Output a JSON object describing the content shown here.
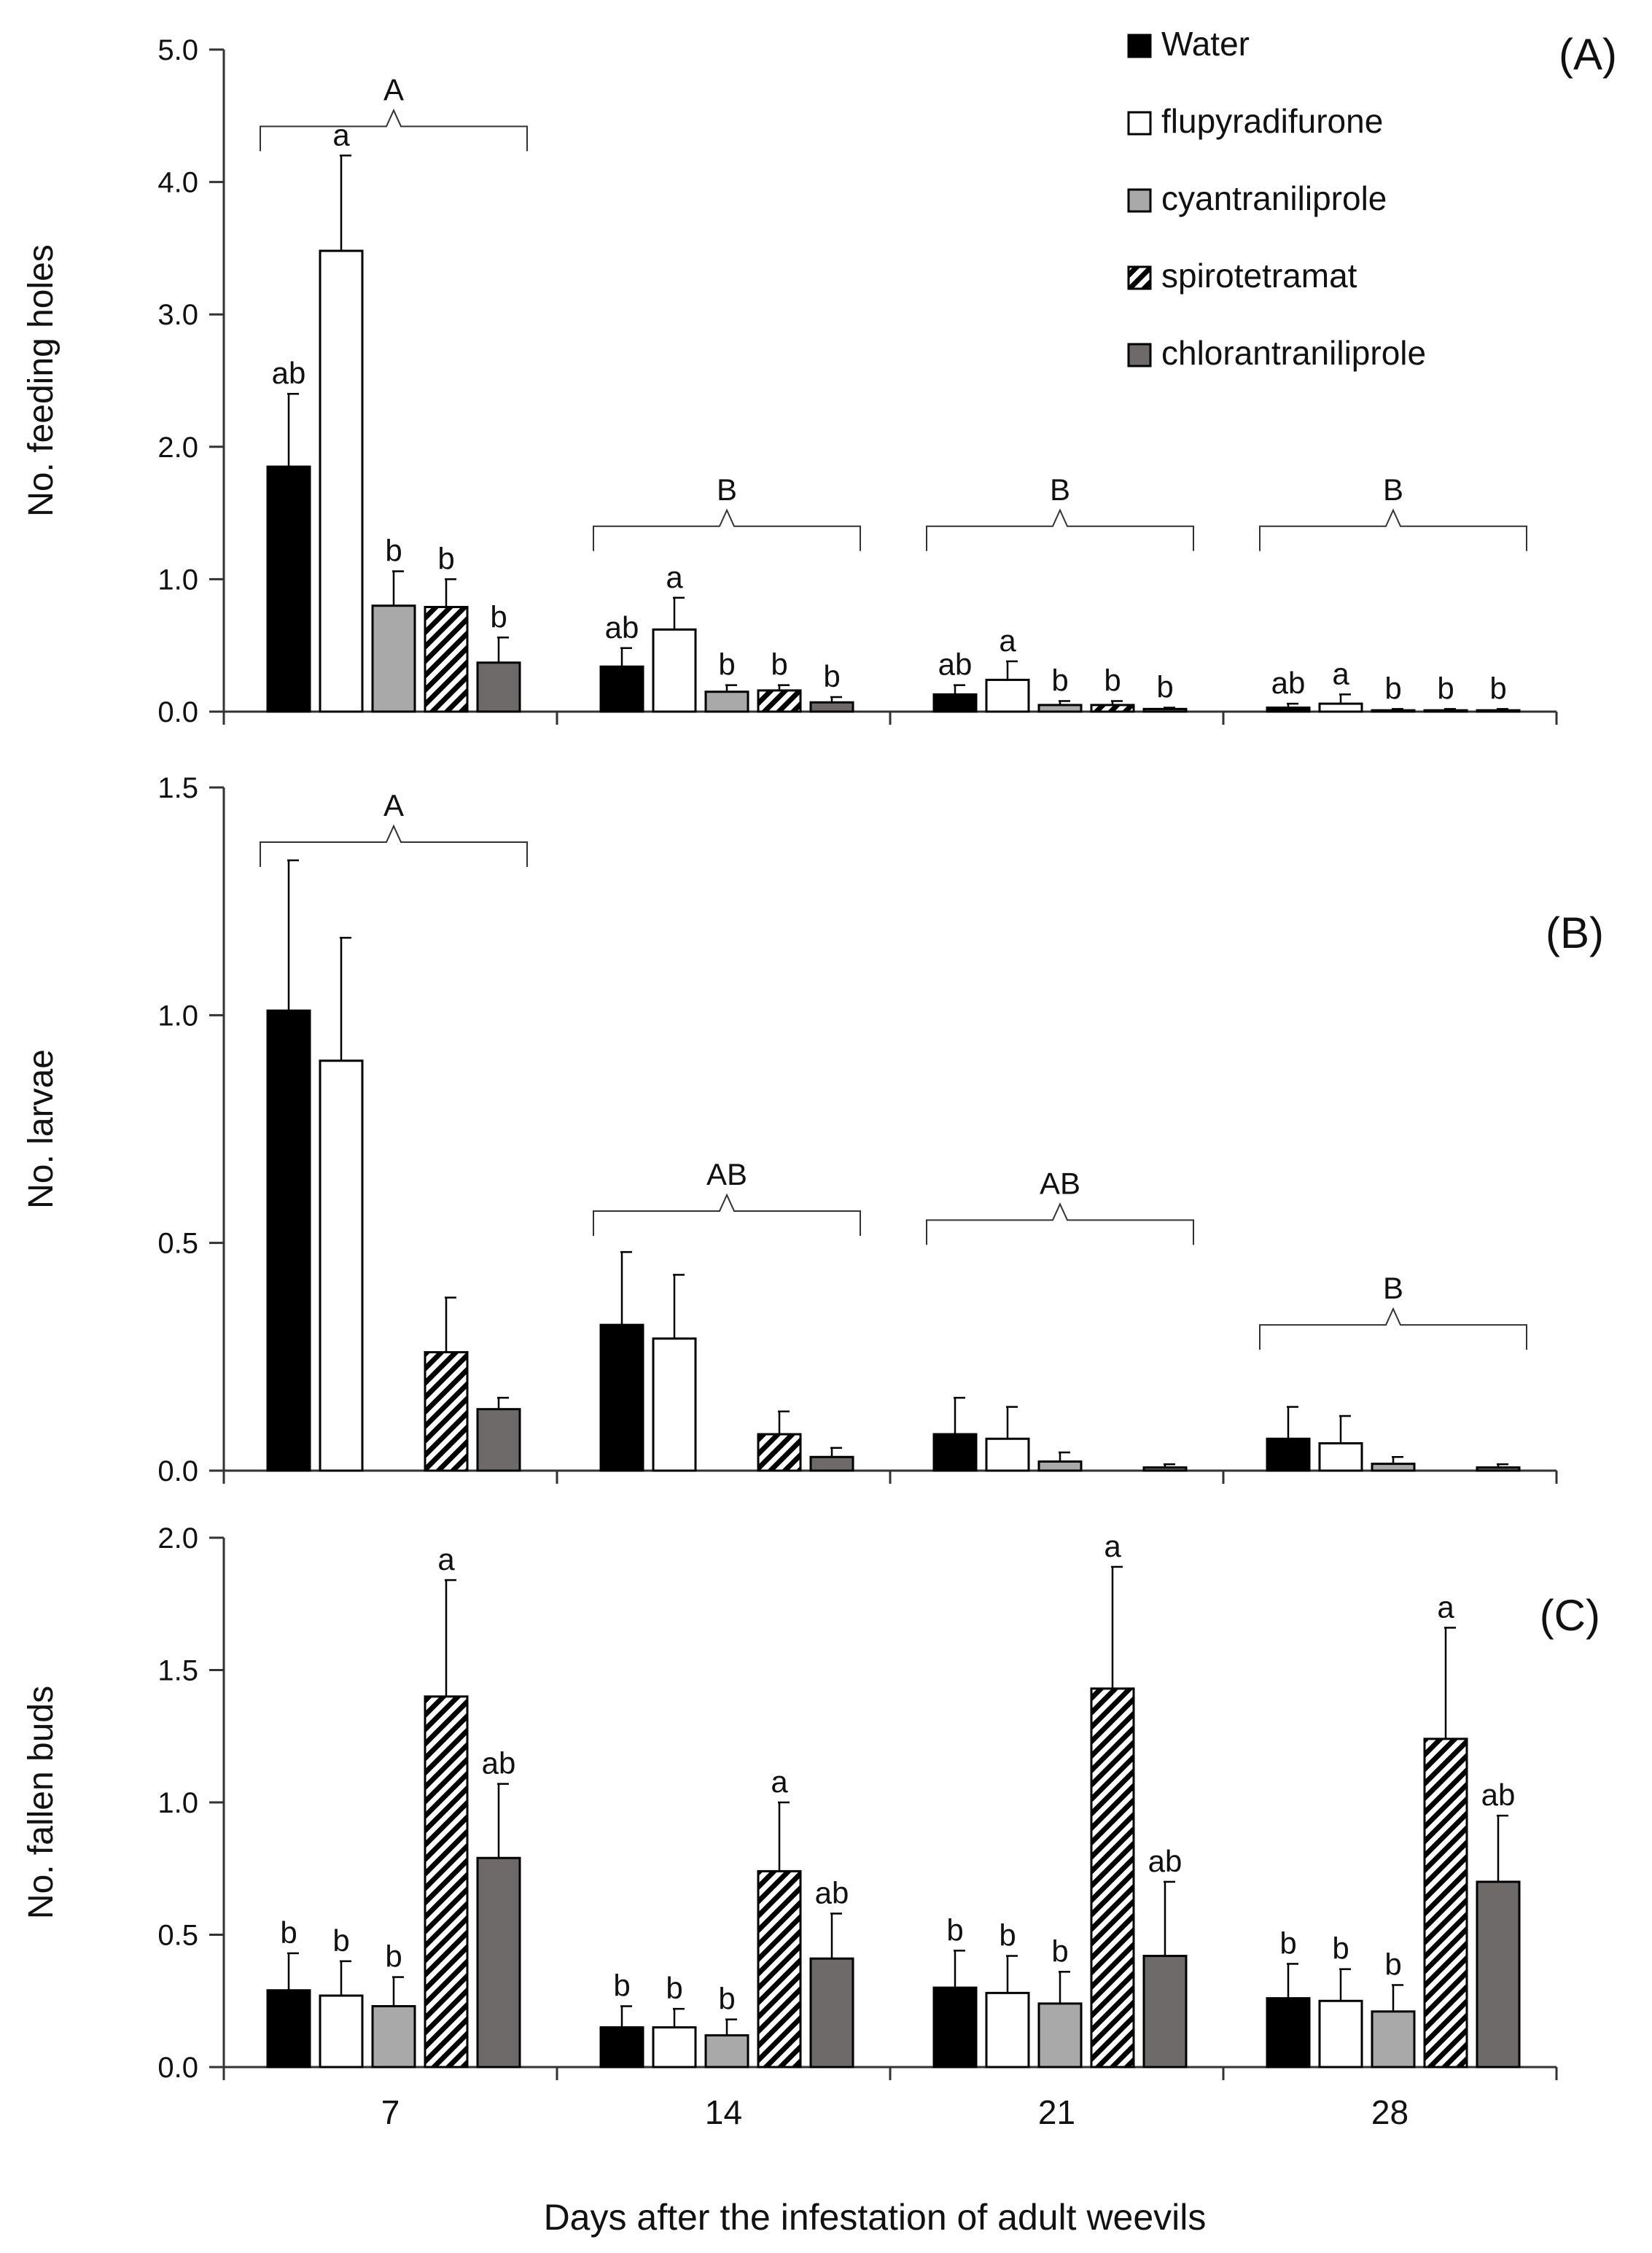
{
  "colors": {
    "Water": "#000000",
    "flupyradifurone": "#ffffff",
    "cyantraniliprole": "#a9a9a9",
    "spirotetramat": "hatch",
    "chlorantraniliprole": "#6e6a6a",
    "axis": "#333333",
    "background": "#ffffff"
  },
  "legend": {
    "placement": "top-right",
    "items": [
      {
        "name": "Water",
        "icon": "filled-square-icon"
      },
      {
        "name": "flupyradifurone",
        "icon": "open-square-icon"
      },
      {
        "name": "cyantraniliprole",
        "icon": "gray-square-icon"
      },
      {
        "name": "spirotetramat",
        "icon": "hatched-square-icon"
      },
      {
        "name": "chlorantraniliprole",
        "icon": "dark-gray-square-icon"
      }
    ]
  },
  "xlabel": "Days after the infestation of adult weevils",
  "chart_data": [
    {
      "type": "bar",
      "panel": "(A)",
      "ylabel": "No. feeding holes",
      "ylim": [
        0,
        5
      ],
      "yticks": [
        "0.0",
        "1.0",
        "2.0",
        "3.0",
        "4.0",
        "5.0"
      ],
      "yticks_values": [
        0,
        1,
        2,
        3,
        4,
        5
      ],
      "categories": [
        "7",
        "14",
        "21",
        "28"
      ],
      "series": [
        {
          "name": "Water",
          "values": [
            1.85,
            0.34,
            0.13,
            0.03
          ],
          "errors": [
            0.55,
            0.14,
            0.07,
            0.03
          ],
          "letters": [
            "ab",
            "ab",
            "ab",
            "ab"
          ]
        },
        {
          "name": "flupyradifurone",
          "values": [
            3.48,
            0.62,
            0.24,
            0.06
          ],
          "errors": [
            0.72,
            0.24,
            0.14,
            0.07
          ],
          "letters": [
            "a",
            "a",
            "a",
            "a"
          ]
        },
        {
          "name": "cyantraniliprole",
          "values": [
            0.8,
            0.15,
            0.05,
            0.01
          ],
          "errors": [
            0.26,
            0.05,
            0.03,
            0.01
          ],
          "letters": [
            "b",
            "b",
            "b",
            "b"
          ]
        },
        {
          "name": "spirotetramat",
          "values": [
            0.79,
            0.16,
            0.05,
            0.01
          ],
          "errors": [
            0.21,
            0.04,
            0.03,
            0.01
          ],
          "letters": [
            "b",
            "b",
            "b",
            "b"
          ]
        },
        {
          "name": "chlorantraniliprole",
          "values": [
            0.37,
            0.07,
            0.02,
            0.01
          ],
          "errors": [
            0.19,
            0.04,
            0.01,
            0.01
          ],
          "letters": [
            "b",
            "b",
            "b",
            "b"
          ]
        }
      ],
      "group_letters": [
        "A",
        "B",
        "B",
        "B"
      ]
    },
    {
      "type": "bar",
      "panel": "(B)",
      "ylabel": "No. larvae",
      "ylim": [
        0,
        1.5
      ],
      "yticks": [
        "0.0",
        "0.5",
        "1.0",
        "1.5"
      ],
      "yticks_values": [
        0,
        0.5,
        1.0,
        1.5
      ],
      "categories": [
        "7",
        "14",
        "21",
        "28"
      ],
      "series": [
        {
          "name": "Water",
          "values": [
            1.01,
            0.32,
            0.08,
            0.07
          ],
          "errors": [
            0.33,
            0.16,
            0.08,
            0.07
          ],
          "letters": [
            "",
            "",
            "",
            ""
          ]
        },
        {
          "name": "flupyradifurone",
          "values": [
            0.9,
            0.29,
            0.07,
            0.06
          ],
          "errors": [
            0.27,
            0.14,
            0.07,
            0.06
          ],
          "letters": [
            "",
            "",
            "",
            ""
          ]
        },
        {
          "name": "cyantraniliprole",
          "values": [
            0,
            0,
            0.02,
            0.015
          ],
          "errors": [
            0,
            0,
            0.02,
            0.015
          ],
          "letters": [
            "",
            "",
            "",
            ""
          ]
        },
        {
          "name": "spirotetramat",
          "values": [
            0.26,
            0.08,
            0,
            0
          ],
          "errors": [
            0.12,
            0.05,
            0,
            0
          ],
          "letters": [
            "",
            "",
            "",
            ""
          ]
        },
        {
          "name": "chlorantraniliprole",
          "values": [
            0.135,
            0.03,
            0.007,
            0.007
          ],
          "errors": [
            0.025,
            0.02,
            0.007,
            0.007
          ],
          "letters": [
            "",
            "",
            "",
            ""
          ]
        }
      ],
      "group_letters": [
        "A",
        "AB",
        "AB",
        "B"
      ]
    },
    {
      "type": "bar",
      "panel": "(C)",
      "ylabel": "No. fallen buds",
      "ylim": [
        0,
        2.0
      ],
      "yticks": [
        "0.0",
        "0.5",
        "1.0",
        "1.5",
        "2.0"
      ],
      "yticks_values": [
        0,
        0.5,
        1.0,
        1.5,
        2.0
      ],
      "categories": [
        "7",
        "14",
        "21",
        "28"
      ],
      "series": [
        {
          "name": "Water",
          "values": [
            0.29,
            0.15,
            0.3,
            0.26
          ],
          "errors": [
            0.14,
            0.08,
            0.14,
            0.13
          ],
          "letters": [
            "b",
            "b",
            "b",
            "b"
          ]
        },
        {
          "name": "flupyradifurone",
          "values": [
            0.27,
            0.15,
            0.28,
            0.25
          ],
          "errors": [
            0.13,
            0.07,
            0.14,
            0.12
          ],
          "letters": [
            "b",
            "b",
            "b",
            "b"
          ]
        },
        {
          "name": "cyantraniliprole",
          "values": [
            0.23,
            0.12,
            0.24,
            0.21
          ],
          "errors": [
            0.11,
            0.06,
            0.12,
            0.1
          ],
          "letters": [
            "b",
            "b",
            "b",
            "b"
          ]
        },
        {
          "name": "spirotetramat",
          "values": [
            1.4,
            0.74,
            1.43,
            1.24
          ],
          "errors": [
            0.44,
            0.26,
            0.46,
            0.42
          ],
          "letters": [
            "a",
            "a",
            "a",
            "a"
          ]
        },
        {
          "name": "chlorantraniliprole",
          "values": [
            0.79,
            0.41,
            0.42,
            0.7
          ],
          "errors": [
            0.28,
            0.17,
            0.28,
            0.25
          ],
          "letters": [
            "ab",
            "ab",
            "ab",
            "ab"
          ]
        }
      ],
      "group_letters": [
        "",
        "",
        "",
        ""
      ]
    }
  ]
}
